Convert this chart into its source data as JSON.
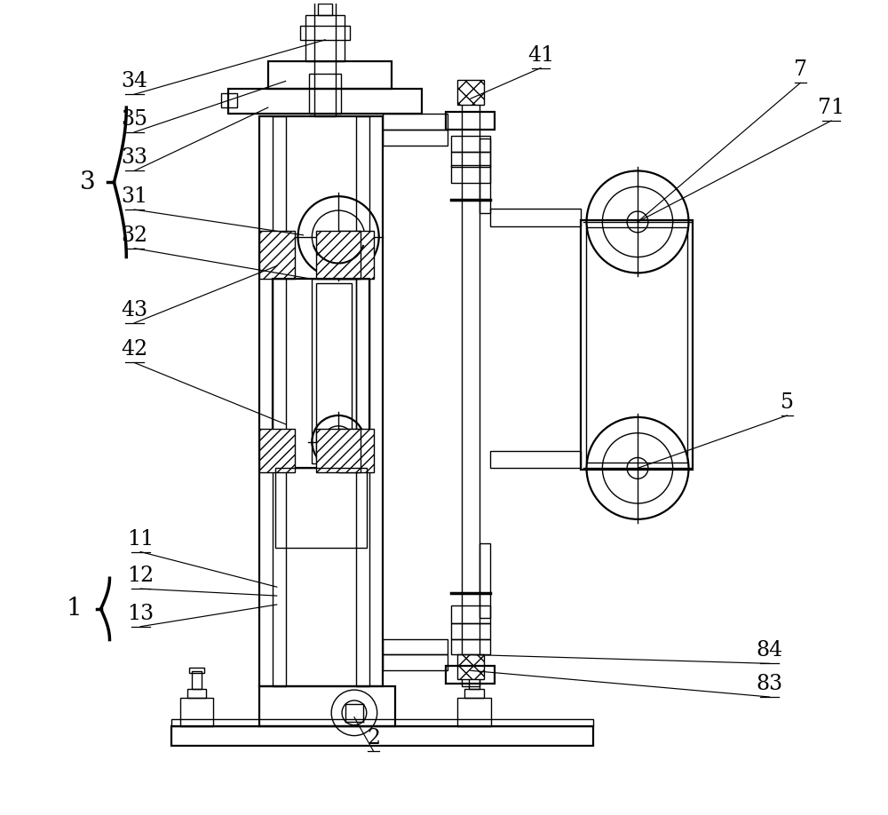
{
  "bg": "#ffffff",
  "lc": "#000000",
  "lw": 1.0,
  "lw2": 1.6,
  "fs": 17,
  "fw": 10.0,
  "fh": 9.18
}
